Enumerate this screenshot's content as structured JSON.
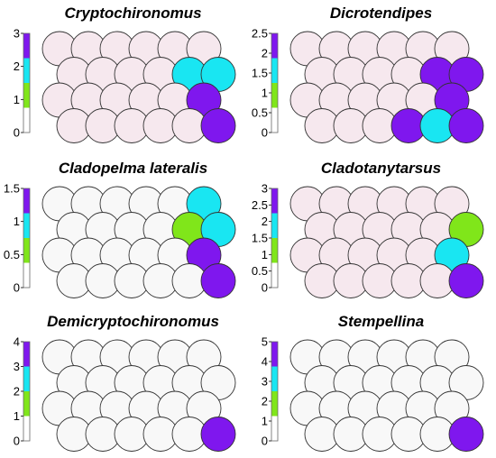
{
  "colors": {
    "level_0": "#ffffff",
    "level_1": "#80e61a",
    "level_2": "#19e6f2",
    "level_3": "#7f17ee",
    "cell_empty_pink": "#f6e8ee",
    "cell_empty_white": "#f8f8f8",
    "cell_stroke": "#333333"
  },
  "chart_data": [
    {
      "type": "heatmap",
      "title": "Cryptochironomus",
      "colorbar_ticks": [
        "0",
        "1",
        "2",
        "3"
      ],
      "colorbar_range": [
        0,
        3
      ],
      "empty_style": "pink",
      "rows": [
        [
          0,
          0,
          0,
          0,
          0,
          0
        ],
        [
          0,
          0,
          0,
          0,
          2,
          2
        ],
        [
          0,
          0,
          0,
          0,
          0,
          3
        ],
        [
          0,
          0,
          0,
          0,
          0,
          3
        ]
      ]
    },
    {
      "type": "heatmap",
      "title": "Dicrotendipes",
      "colorbar_ticks": [
        "0",
        "0.5",
        "1",
        "1.5",
        "2",
        "2.5"
      ],
      "colorbar_range": [
        0,
        2.5
      ],
      "empty_style": "pink",
      "rows": [
        [
          0,
          0,
          0,
          0,
          0,
          0
        ],
        [
          0,
          0,
          0,
          0,
          2,
          2
        ],
        [
          0,
          0,
          0,
          0,
          0,
          2
        ],
        [
          0,
          0,
          0,
          2,
          1.5,
          2.5
        ]
      ]
    },
    {
      "type": "heatmap",
      "title": "Cladopelma lateralis",
      "colorbar_ticks": [
        "0",
        "0.5",
        "1",
        "1.5"
      ],
      "colorbar_range": [
        0,
        1.5
      ],
      "empty_style": "white",
      "rows": [
        [
          0,
          0,
          0,
          0,
          0,
          1
        ],
        [
          0,
          0,
          0,
          0,
          0.5,
          1
        ],
        [
          0,
          0,
          0,
          0,
          0,
          1.5
        ],
        [
          0,
          0,
          0,
          0,
          0,
          1.5
        ]
      ]
    },
    {
      "type": "heatmap",
      "title": "Cladotanytarsus",
      "colorbar_ticks": [
        "0",
        "0.5",
        "1",
        "1.5",
        "2",
        "2.5",
        "3"
      ],
      "colorbar_range": [
        0,
        3
      ],
      "empty_style": "pink",
      "rows": [
        [
          0,
          0,
          0,
          0,
          0,
          0
        ],
        [
          0,
          0,
          0,
          0,
          0,
          1
        ],
        [
          0,
          0,
          0,
          0,
          0,
          2
        ],
        [
          0,
          0,
          0,
          0,
          0,
          3
        ]
      ]
    },
    {
      "type": "heatmap",
      "title": "Demicryptochironomus",
      "colorbar_ticks": [
        "0",
        "1",
        "2",
        "3",
        "4"
      ],
      "colorbar_range": [
        0,
        4
      ],
      "empty_style": "white",
      "rows": [
        [
          0,
          0,
          0,
          0,
          0,
          0
        ],
        [
          0,
          0,
          0,
          0,
          0,
          0
        ],
        [
          0,
          0,
          0,
          0,
          0,
          0
        ],
        [
          0,
          0,
          0,
          0,
          0,
          4
        ]
      ]
    },
    {
      "type": "heatmap",
      "title": "Stempellina",
      "colorbar_ticks": [
        "0",
        "1",
        "2",
        "3",
        "4",
        "5"
      ],
      "colorbar_range": [
        0,
        5
      ],
      "empty_style": "white",
      "rows": [
        [
          0,
          0,
          0,
          0,
          0,
          0
        ],
        [
          0,
          0,
          0,
          0,
          0,
          0
        ],
        [
          0,
          0,
          0,
          0,
          0,
          0
        ],
        [
          0,
          0,
          0,
          0,
          0,
          5
        ]
      ]
    }
  ]
}
